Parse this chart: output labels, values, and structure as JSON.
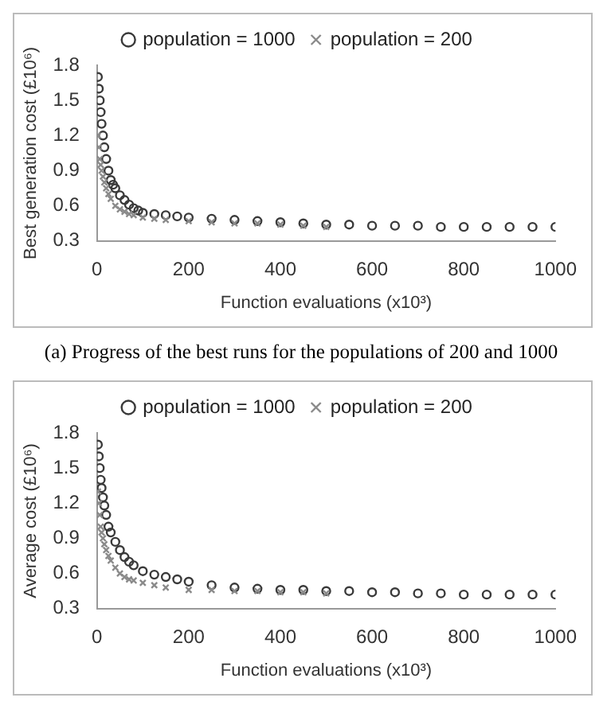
{
  "chart_data": [
    {
      "type": "scatter",
      "xlabel": "Function evaluations (x10³)",
      "ylabel": "Best generation cost (£10⁶)",
      "annotations": [
        "(a) Progress of the best runs for the populations of 200 and 1000"
      ],
      "xlim": [
        0,
        1000
      ],
      "xticks": [
        0,
        200,
        400,
        600,
        800,
        1000
      ],
      "ylim": [
        0.3,
        1.8
      ],
      "yticks": [
        0.3,
        0.6,
        0.9,
        1.2,
        1.5,
        1.8
      ],
      "grid": false,
      "legend": "top",
      "series": [
        {
          "name": "population = 1000",
          "color": "#3a3a3a",
          "marker": "circle",
          "x": [
            2,
            4,
            6,
            8,
            10,
            13,
            16,
            20,
            25,
            30,
            35,
            40,
            50,
            60,
            70,
            80,
            90,
            100,
            125,
            150,
            175,
            200,
            250,
            300,
            350,
            400,
            450,
            500,
            550,
            600,
            650,
            700,
            750,
            800,
            850,
            900,
            950,
            1000
          ],
          "values": [
            1.7,
            1.6,
            1.5,
            1.4,
            1.3,
            1.2,
            1.1,
            1.0,
            0.9,
            0.82,
            0.78,
            0.75,
            0.69,
            0.65,
            0.61,
            0.58,
            0.56,
            0.54,
            0.53,
            0.52,
            0.51,
            0.5,
            0.49,
            0.48,
            0.47,
            0.46,
            0.45,
            0.44,
            0.44,
            0.43,
            0.43,
            0.43,
            0.42,
            0.42,
            0.42,
            0.42,
            0.42,
            0.42
          ]
        },
        {
          "name": "population = 200",
          "color": "#8a8a8a",
          "marker": "cross",
          "x": [
            2,
            4,
            6,
            8,
            10,
            13,
            16,
            20,
            25,
            30,
            40,
            50,
            60,
            70,
            80,
            100,
            125,
            150,
            200,
            250,
            300,
            350,
            400,
            450,
            500
          ],
          "values": [
            1.2,
            1.1,
            1.0,
            0.95,
            0.9,
            0.85,
            0.8,
            0.75,
            0.7,
            0.66,
            0.6,
            0.57,
            0.55,
            0.53,
            0.52,
            0.5,
            0.49,
            0.48,
            0.47,
            0.46,
            0.45,
            0.45,
            0.44,
            0.43,
            0.42
          ]
        }
      ]
    },
    {
      "type": "scatter",
      "xlabel": "Function evaluations (x10³)",
      "ylabel": "Average cost (£10⁶)",
      "xlim": [
        0,
        1000
      ],
      "xticks": [
        0,
        200,
        400,
        600,
        800,
        1000
      ],
      "ylim": [
        0.3,
        1.8
      ],
      "yticks": [
        0.3,
        0.6,
        0.9,
        1.2,
        1.5,
        1.8
      ],
      "grid": false,
      "legend": "top",
      "series": [
        {
          "name": "population = 1000",
          "color": "#3a3a3a",
          "marker": "circle",
          "x": [
            2,
            4,
            6,
            8,
            10,
            13,
            16,
            20,
            25,
            30,
            40,
            50,
            60,
            70,
            80,
            100,
            125,
            150,
            175,
            200,
            250,
            300,
            350,
            400,
            450,
            500,
            550,
            600,
            650,
            700,
            750,
            800,
            850,
            900,
            950,
            1000
          ],
          "values": [
            1.7,
            1.6,
            1.5,
            1.4,
            1.33,
            1.25,
            1.18,
            1.1,
            1.0,
            0.95,
            0.87,
            0.8,
            0.74,
            0.7,
            0.67,
            0.62,
            0.59,
            0.57,
            0.55,
            0.53,
            0.5,
            0.48,
            0.47,
            0.46,
            0.46,
            0.45,
            0.45,
            0.44,
            0.44,
            0.43,
            0.43,
            0.42,
            0.42,
            0.42,
            0.42,
            0.42
          ]
        },
        {
          "name": "population = 200",
          "color": "#8a8a8a",
          "marker": "cross",
          "x": [
            2,
            4,
            6,
            8,
            10,
            13,
            16,
            20,
            25,
            30,
            40,
            50,
            60,
            70,
            80,
            100,
            125,
            150,
            200,
            250,
            300,
            350,
            400,
            450,
            500
          ],
          "values": [
            1.3,
            1.2,
            1.1,
            1.0,
            0.95,
            0.9,
            0.85,
            0.8,
            0.75,
            0.71,
            0.65,
            0.6,
            0.57,
            0.55,
            0.54,
            0.52,
            0.5,
            0.48,
            0.46,
            0.46,
            0.45,
            0.45,
            0.44,
            0.44,
            0.43
          ]
        }
      ]
    }
  ]
}
